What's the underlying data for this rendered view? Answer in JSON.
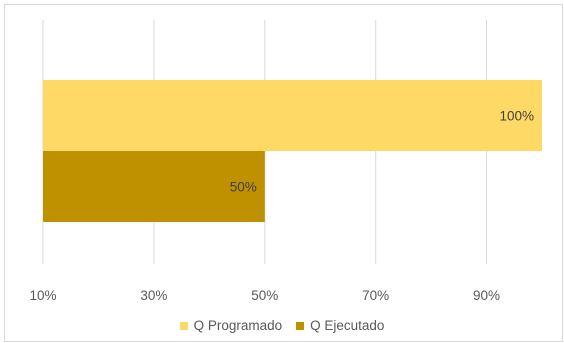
{
  "chart_data": {
    "type": "bar",
    "orientation": "horizontal",
    "x_ticks": [
      "10%",
      "30%",
      "50%",
      "70%",
      "90%"
    ],
    "xlim": [
      10,
      100
    ],
    "grid": "vertical",
    "legend_position": "bottom",
    "series": [
      {
        "name": "Q Programado",
        "value": 100,
        "label": "100%",
        "color": "#ffd966"
      },
      {
        "name": "Q Ejecutado",
        "value": 50,
        "label": "50%",
        "color": "#bf9000"
      }
    ]
  }
}
